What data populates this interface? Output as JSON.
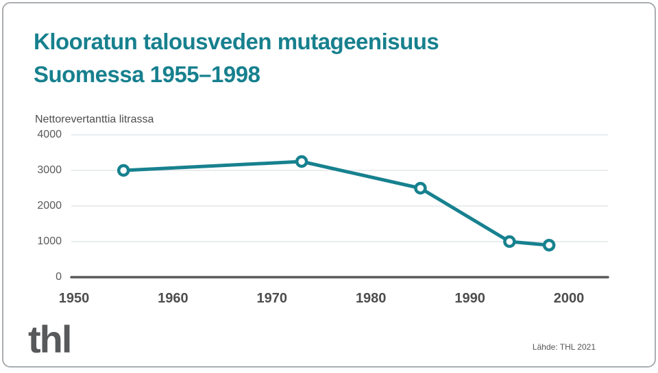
{
  "title": {
    "line1": "Klooratun talousveden mutageenisuus",
    "line2": "Suomessa 1955–1998"
  },
  "chart_data": {
    "type": "line",
    "title": "Klooratun talousveden mutageenisuus Suomessa 1955–1998",
    "ylabel": "Nettorevertanttia litrassa",
    "xlabel": "",
    "x": [
      1955,
      1973,
      1985,
      1994,
      1998
    ],
    "values": [
      3000,
      3250,
      2500,
      1000,
      900
    ],
    "series": [
      {
        "name": "Nettorevertanttia litrassa",
        "x": [
          1955,
          1973,
          1985,
          1994,
          1998
        ],
        "values": [
          3000,
          3250,
          2500,
          1000,
          900
        ]
      }
    ],
    "x_ticks": [
      1950,
      1960,
      1970,
      1980,
      1990,
      2000
    ],
    "y_ticks": [
      0,
      1000,
      2000,
      3000,
      4000
    ],
    "xlim": [
      1950,
      2004
    ],
    "ylim": [
      0,
      4000
    ],
    "grid": true,
    "legend": false,
    "marker": "open-circle",
    "colors": {
      "line": "#17818F",
      "marker_fill": "#ffffff",
      "gridline": "#dce1e3",
      "axis": "#595959",
      "tick_label": "#595959",
      "x_tick_label": "#4d4d4d",
      "title": "#17808E"
    }
  },
  "footer": {
    "logo": "thl",
    "source": "Lähde: THL 2021"
  }
}
